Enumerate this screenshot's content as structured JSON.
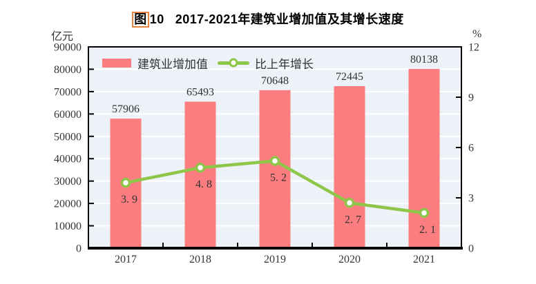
{
  "title": {
    "fig_char": "图",
    "fig_num": "10",
    "main": "2017-2021年建筑业增加值及其增长速度"
  },
  "legend": {
    "bar_label": "建筑业增加值",
    "line_label": "比上年增长"
  },
  "colors": {
    "bar": "#fb7d80",
    "line": "#8dc648",
    "marker_fill": "#ffffff",
    "plot_bg": "#edf2f8",
    "grid": "#ffffff",
    "axis": "#000000",
    "text": "#333333",
    "title_fig_box": "#e5823d"
  },
  "chart_data": {
    "type": "combo-bar-line",
    "title": "图10 2017-2021年建筑业增加值及其增长速度",
    "categories": [
      "2017",
      "2018",
      "2019",
      "2020",
      "2021"
    ],
    "series": [
      {
        "name": "建筑业增加值",
        "type": "bar",
        "axis": "left",
        "values": [
          57906,
          65493,
          70648,
          72445,
          80138
        ],
        "labels": [
          "57906",
          "65493",
          "70648",
          "72445",
          "80138"
        ]
      },
      {
        "name": "比上年增长",
        "type": "line",
        "axis": "right",
        "values": [
          3.9,
          4.8,
          5.2,
          2.7,
          2.1
        ],
        "labels": [
          "3. 9",
          "4. 8",
          "5. 2",
          "2. 7",
          "2. 1"
        ]
      }
    ],
    "left_axis": {
      "unit": "亿元",
      "min": 0,
      "max": 90000,
      "step": 10000,
      "ticks": [
        "0",
        "10000",
        "20000",
        "30000",
        "40000",
        "50000",
        "60000",
        "70000",
        "80000",
        "90000"
      ]
    },
    "right_axis": {
      "unit": "%",
      "min": 0,
      "max": 12,
      "step": 3,
      "ticks": [
        "0",
        "3",
        "6",
        "9",
        "12"
      ]
    },
    "grid": true,
    "legend_position": "inside-top-left"
  }
}
